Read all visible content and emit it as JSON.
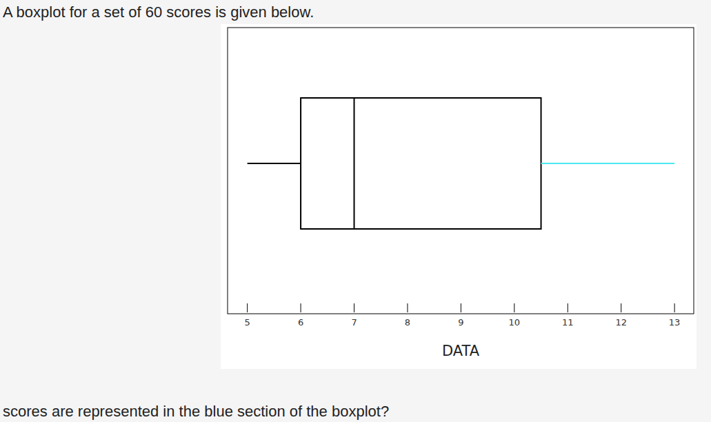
{
  "intro_text": "A boxplot for a set of 60 scores is given below.",
  "question_text": "scores are represented in the blue section of the boxplot?",
  "chart_data": {
    "type": "boxplot",
    "xlabel": "DATA",
    "values": [
      5,
      6,
      7,
      10.5,
      13
    ],
    "colors": [
      "#000000",
      "#000000",
      "#000000",
      "#4de8f0"
    ],
    "xlim": [
      4.63,
      13.36
    ],
    "xticks": [
      5,
      6,
      7,
      8,
      9,
      10,
      11,
      12,
      13
    ],
    "grid": false
  }
}
